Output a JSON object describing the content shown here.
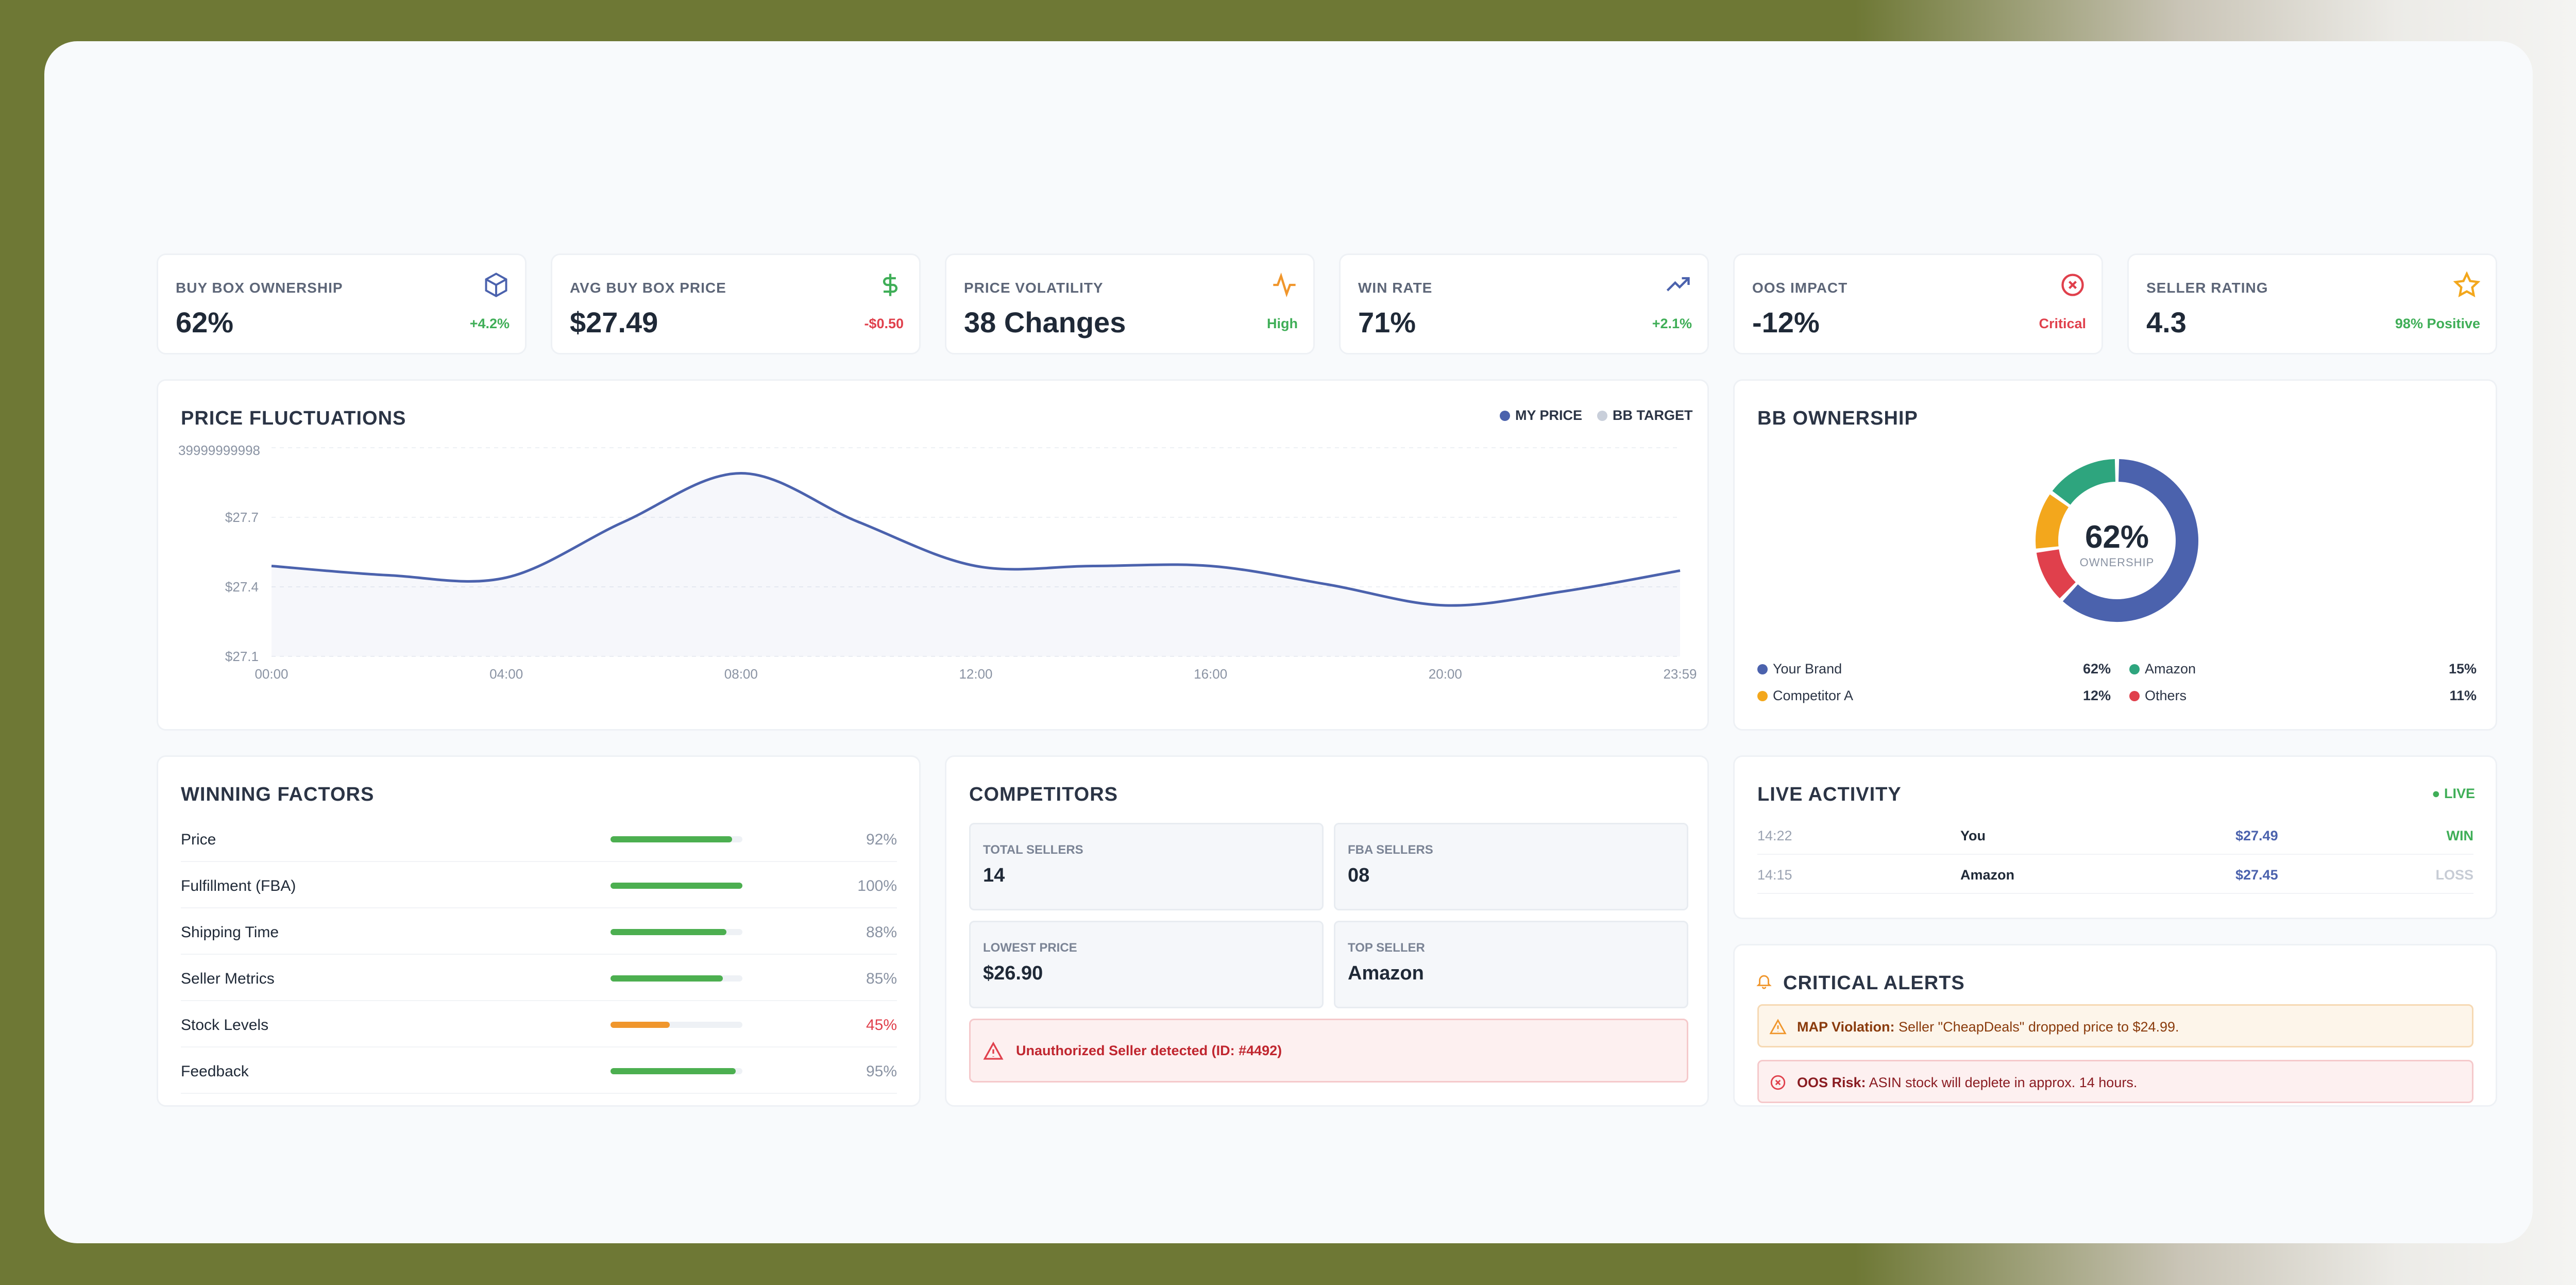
{
  "kpis": [
    {
      "label": "BUY BOX OWNERSHIP",
      "value": "62%",
      "delta": "+4.2%",
      "icon": "box-icon"
    },
    {
      "label": "AVG BUY BOX PRICE",
      "value": "$27.49",
      "delta": "-$0.50",
      "icon": "dollar-icon"
    },
    {
      "label": "PRICE VOLATILITY",
      "value": "38 Changes",
      "delta": "High",
      "icon": "activity-icon"
    },
    {
      "label": "WIN RATE",
      "value": "71%",
      "delta": "+2.1%",
      "icon": "trending-up-icon"
    },
    {
      "label": "OOS IMPACT",
      "value": "-12%",
      "delta": "Critical",
      "icon": "x-circle-icon"
    },
    {
      "label": "SELLER RATING",
      "value": "4.3",
      "delta": "98% Positive",
      "icon": "star-icon"
    }
  ],
  "colors": {
    "accent": "#4b62ad",
    "green": "#3fae57",
    "red": "#e0404c",
    "orange": "#f0962c",
    "teal": "#2ea57e",
    "gold": "#f3a71c"
  },
  "price_chart": {
    "title": "PRICE FLUCTUATIONS",
    "legend": [
      "MY PRICE",
      "BB TARGET"
    ],
    "y_top_label": "39999999998",
    "chart_data": {
      "type": "line",
      "x": [
        "00:00",
        "02:00",
        "04:00",
        "06:00",
        "08:00",
        "10:00",
        "12:00",
        "14:00",
        "16:00",
        "18:00",
        "20:00",
        "22:00",
        "23:59"
      ],
      "series": [
        {
          "name": "MY PRICE",
          "values": [
            27.49,
            27.45,
            27.44,
            27.68,
            27.89,
            27.68,
            27.49,
            27.49,
            27.49,
            27.41,
            27.32,
            27.38,
            27.47
          ]
        }
      ],
      "yticks": [
        "$27.1",
        "$27.4",
        "$27.7"
      ],
      "ylim": [
        27.1,
        28.0
      ],
      "xticks": [
        "00:00",
        "04:00",
        "08:00",
        "12:00",
        "16:00",
        "20:00",
        "23:59"
      ],
      "grid": true,
      "legend_position": "top-right"
    }
  },
  "ownership": {
    "title": "BB OWNERSHIP",
    "center_value": "62%",
    "center_label": "OWNERSHIP",
    "segments": [
      {
        "name": "Your Brand",
        "value": 62,
        "label": "62%",
        "color": "#4b62ad"
      },
      {
        "name": "Amazon",
        "value": 15,
        "label": "15%",
        "color": "#2ea57e"
      },
      {
        "name": "Competitor A",
        "value": 12,
        "label": "12%",
        "color": "#f3a71c"
      },
      {
        "name": "Others",
        "value": 11,
        "label": "11%",
        "color": "#e0404c"
      }
    ]
  },
  "factors": {
    "title": "WINNING FACTORS",
    "items": [
      {
        "name": "Price",
        "pct": "92%",
        "value": 92,
        "color": "#4caf50"
      },
      {
        "name": "Fulfillment (FBA)",
        "pct": "100%",
        "value": 100,
        "color": "#4caf50"
      },
      {
        "name": "Shipping Time",
        "pct": "88%",
        "value": 88,
        "color": "#4caf50"
      },
      {
        "name": "Seller Metrics",
        "pct": "85%",
        "value": 85,
        "color": "#4caf50"
      },
      {
        "name": "Stock Levels",
        "pct": "45%",
        "value": 45,
        "color": "#f0962c"
      },
      {
        "name": "Feedback",
        "pct": "95%",
        "value": 95,
        "color": "#4caf50"
      }
    ]
  },
  "competitors": {
    "title": "COMPETITORS",
    "stats": [
      {
        "label": "TOTAL SELLERS",
        "value": "14"
      },
      {
        "label": "FBA SELLERS",
        "value": "08"
      },
      {
        "label": "LOWEST PRICE",
        "value": "$26.90"
      },
      {
        "label": "TOP SELLER",
        "value": "Amazon"
      }
    ],
    "alert": "Unauthorized Seller detected (ID: #4492)"
  },
  "activity": {
    "title": "LIVE ACTIVITY",
    "badge": "● LIVE",
    "rows": [
      {
        "time": "14:22",
        "who": "You",
        "price": "$27.49",
        "result": "WIN"
      },
      {
        "time": "14:15",
        "who": "Amazon",
        "price": "$27.45",
        "result": "LOSS"
      }
    ]
  },
  "alerts": {
    "title": "CRITICAL ALERTS",
    "items": [
      {
        "label": "MAP Violation:",
        "text": "Seller \"CheapDeals\" dropped price to $24.99."
      },
      {
        "label": "OOS Risk:",
        "text": "ASIN stock will deplete in approx. 14 hours."
      }
    ]
  }
}
